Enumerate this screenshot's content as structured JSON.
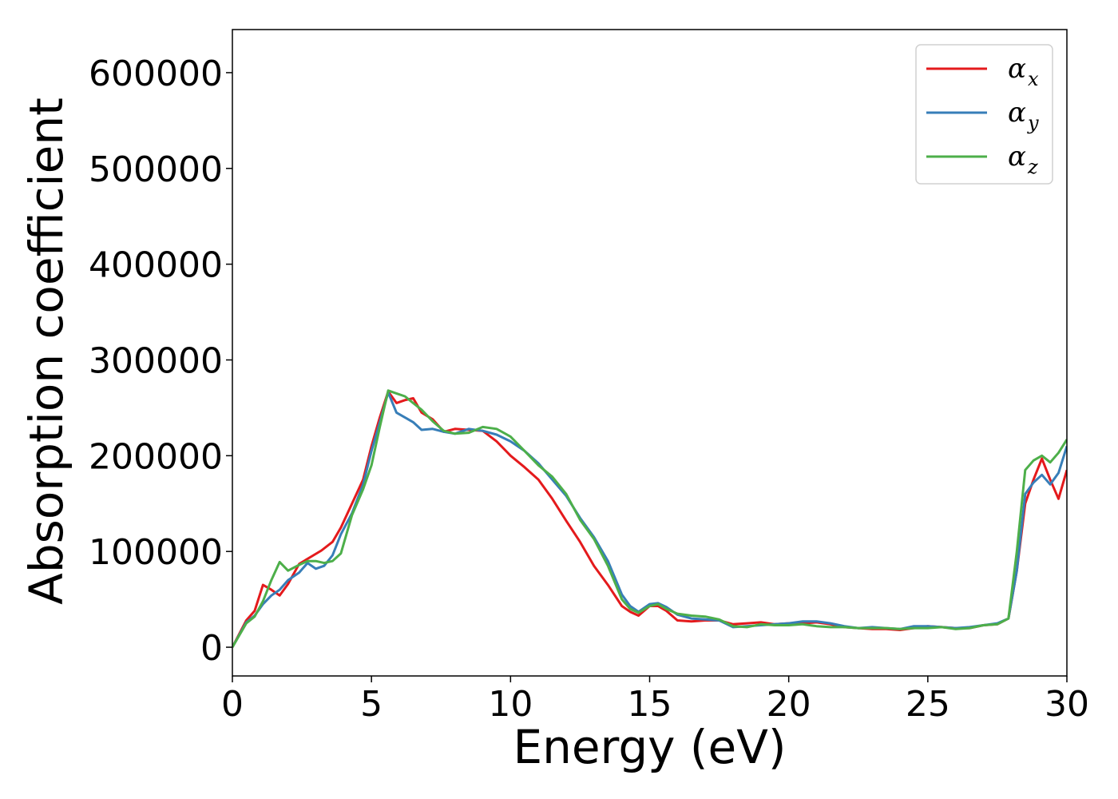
{
  "chart_data": {
    "type": "line",
    "title": "",
    "xlabel": "Energy (eV)",
    "ylabel": "Absorption coefficient",
    "xlim": [
      0,
      30
    ],
    "ylim": [
      -30000,
      645000
    ],
    "x_ticks": [
      0,
      5,
      10,
      15,
      20,
      25,
      30
    ],
    "x_tick_labels": [
      "0",
      "5",
      "10",
      "15",
      "20",
      "25",
      "30"
    ],
    "y_ticks": [
      0,
      100000,
      200000,
      300000,
      400000,
      500000,
      600000
    ],
    "y_tick_labels": [
      "0",
      "100000",
      "200000",
      "300000",
      "400000",
      "500000",
      "600000"
    ],
    "grid": false,
    "legend_position": "top-right",
    "series": [
      {
        "name": "α_x",
        "label_main": "α",
        "label_sub": "x",
        "color": "#e41a1c",
        "points": [
          [
            0,
            0
          ],
          [
            0.5,
            28000
          ],
          [
            0.8,
            38000
          ],
          [
            1.1,
            65000
          ],
          [
            1.4,
            60000
          ],
          [
            1.7,
            54000
          ],
          [
            2.0,
            66000
          ],
          [
            2.4,
            87000
          ],
          [
            2.8,
            94000
          ],
          [
            3.2,
            101000
          ],
          [
            3.6,
            110000
          ],
          [
            3.9,
            125000
          ],
          [
            4.3,
            150000
          ],
          [
            4.7,
            175000
          ],
          [
            5.0,
            210000
          ],
          [
            5.3,
            240000
          ],
          [
            5.6,
            267000
          ],
          [
            5.9,
            255000
          ],
          [
            6.2,
            258000
          ],
          [
            6.5,
            260000
          ],
          [
            6.8,
            245000
          ],
          [
            7.2,
            238000
          ],
          [
            7.6,
            225000
          ],
          [
            8.0,
            228000
          ],
          [
            8.5,
            227000
          ],
          [
            9.0,
            226000
          ],
          [
            9.5,
            215000
          ],
          [
            10.0,
            200000
          ],
          [
            10.5,
            188000
          ],
          [
            11.0,
            175000
          ],
          [
            11.5,
            155000
          ],
          [
            12.0,
            132000
          ],
          [
            12.5,
            110000
          ],
          [
            13.0,
            85000
          ],
          [
            13.5,
            65000
          ],
          [
            14.0,
            43000
          ],
          [
            14.3,
            37000
          ],
          [
            14.6,
            33000
          ],
          [
            15.0,
            43000
          ],
          [
            15.3,
            43000
          ],
          [
            15.6,
            38000
          ],
          [
            16.0,
            28000
          ],
          [
            16.5,
            27000
          ],
          [
            17.0,
            28000
          ],
          [
            17.5,
            28000
          ],
          [
            18.0,
            24000
          ],
          [
            18.5,
            25000
          ],
          [
            19.0,
            26000
          ],
          [
            19.5,
            24000
          ],
          [
            20.0,
            25000
          ],
          [
            20.5,
            25000
          ],
          [
            21.0,
            26000
          ],
          [
            21.5,
            24000
          ],
          [
            22.0,
            21000
          ],
          [
            22.5,
            20000
          ],
          [
            23.0,
            19000
          ],
          [
            23.5,
            19000
          ],
          [
            24.0,
            18000
          ],
          [
            24.5,
            20000
          ],
          [
            25.0,
            22000
          ],
          [
            25.5,
            21000
          ],
          [
            26.0,
            20000
          ],
          [
            26.5,
            20000
          ],
          [
            27.0,
            23000
          ],
          [
            27.5,
            24000
          ],
          [
            27.9,
            30000
          ],
          [
            28.2,
            80000
          ],
          [
            28.5,
            150000
          ],
          [
            28.8,
            175000
          ],
          [
            29.1,
            197000
          ],
          [
            29.4,
            175000
          ],
          [
            29.7,
            155000
          ],
          [
            30.0,
            185000
          ]
        ]
      },
      {
        "name": "α_y",
        "label_main": "α",
        "label_sub": "y",
        "color": "#377eb8",
        "points": [
          [
            0,
            0
          ],
          [
            0.5,
            26000
          ],
          [
            0.8,
            33000
          ],
          [
            1.1,
            45000
          ],
          [
            1.4,
            54000
          ],
          [
            1.7,
            60000
          ],
          [
            2.0,
            70000
          ],
          [
            2.4,
            78000
          ],
          [
            2.7,
            88000
          ],
          [
            3.0,
            82000
          ],
          [
            3.3,
            85000
          ],
          [
            3.6,
            96000
          ],
          [
            3.9,
            118000
          ],
          [
            4.3,
            140000
          ],
          [
            4.7,
            170000
          ],
          [
            5.0,
            205000
          ],
          [
            5.3,
            235000
          ],
          [
            5.6,
            266000
          ],
          [
            5.9,
            245000
          ],
          [
            6.2,
            240000
          ],
          [
            6.5,
            235000
          ],
          [
            6.8,
            227000
          ],
          [
            7.2,
            228000
          ],
          [
            7.6,
            225000
          ],
          [
            8.0,
            223000
          ],
          [
            8.5,
            228000
          ],
          [
            9.0,
            226000
          ],
          [
            9.5,
            222000
          ],
          [
            10.0,
            215000
          ],
          [
            10.5,
            205000
          ],
          [
            11.0,
            192000
          ],
          [
            11.5,
            175000
          ],
          [
            12.0,
            158000
          ],
          [
            12.5,
            135000
          ],
          [
            13.0,
            115000
          ],
          [
            13.5,
            90000
          ],
          [
            14.0,
            55000
          ],
          [
            14.3,
            43000
          ],
          [
            14.6,
            37000
          ],
          [
            15.0,
            45000
          ],
          [
            15.3,
            46000
          ],
          [
            15.6,
            42000
          ],
          [
            16.0,
            34000
          ],
          [
            16.5,
            30000
          ],
          [
            17.0,
            29000
          ],
          [
            17.5,
            28000
          ],
          [
            18.0,
            21000
          ],
          [
            18.5,
            22000
          ],
          [
            19.0,
            23000
          ],
          [
            19.5,
            24000
          ],
          [
            20.0,
            25000
          ],
          [
            20.5,
            27000
          ],
          [
            21.0,
            27000
          ],
          [
            21.5,
            25000
          ],
          [
            22.0,
            22000
          ],
          [
            22.5,
            20000
          ],
          [
            23.0,
            21000
          ],
          [
            23.5,
            20000
          ],
          [
            24.0,
            19000
          ],
          [
            24.5,
            22000
          ],
          [
            25.0,
            22000
          ],
          [
            25.5,
            21000
          ],
          [
            26.0,
            20000
          ],
          [
            26.5,
            21000
          ],
          [
            27.0,
            23000
          ],
          [
            27.5,
            25000
          ],
          [
            27.9,
            30000
          ],
          [
            28.2,
            80000
          ],
          [
            28.5,
            160000
          ],
          [
            28.8,
            172000
          ],
          [
            29.1,
            180000
          ],
          [
            29.4,
            170000
          ],
          [
            29.7,
            182000
          ],
          [
            30.0,
            210000
          ]
        ]
      },
      {
        "name": "α_z",
        "label_main": "α",
        "label_sub": "z",
        "color": "#4daf4a",
        "points": [
          [
            0,
            0
          ],
          [
            0.5,
            25000
          ],
          [
            0.8,
            32000
          ],
          [
            1.1,
            48000
          ],
          [
            1.4,
            70000
          ],
          [
            1.7,
            89000
          ],
          [
            2.0,
            80000
          ],
          [
            2.4,
            86000
          ],
          [
            2.7,
            90000
          ],
          [
            3.0,
            90000
          ],
          [
            3.3,
            88000
          ],
          [
            3.6,
            90000
          ],
          [
            3.9,
            98000
          ],
          [
            4.3,
            138000
          ],
          [
            4.7,
            165000
          ],
          [
            5.0,
            190000
          ],
          [
            5.3,
            230000
          ],
          [
            5.6,
            268000
          ],
          [
            5.9,
            265000
          ],
          [
            6.2,
            262000
          ],
          [
            6.5,
            255000
          ],
          [
            6.8,
            248000
          ],
          [
            7.2,
            236000
          ],
          [
            7.6,
            226000
          ],
          [
            8.0,
            223000
          ],
          [
            8.5,
            224000
          ],
          [
            9.0,
            230000
          ],
          [
            9.5,
            228000
          ],
          [
            10.0,
            220000
          ],
          [
            10.5,
            205000
          ],
          [
            11.0,
            190000
          ],
          [
            11.5,
            178000
          ],
          [
            12.0,
            160000
          ],
          [
            12.5,
            133000
          ],
          [
            13.0,
            113000
          ],
          [
            13.5,
            85000
          ],
          [
            14.0,
            50000
          ],
          [
            14.3,
            40000
          ],
          [
            14.6,
            36000
          ],
          [
            15.0,
            43000
          ],
          [
            15.3,
            45000
          ],
          [
            15.6,
            40000
          ],
          [
            16.0,
            35000
          ],
          [
            16.5,
            33000
          ],
          [
            17.0,
            32000
          ],
          [
            17.5,
            29000
          ],
          [
            18.0,
            22000
          ],
          [
            18.5,
            21000
          ],
          [
            19.0,
            24000
          ],
          [
            19.5,
            23000
          ],
          [
            20.0,
            23000
          ],
          [
            20.5,
            24000
          ],
          [
            21.0,
            22000
          ],
          [
            21.5,
            21000
          ],
          [
            22.0,
            21000
          ],
          [
            22.5,
            20000
          ],
          [
            23.0,
            20000
          ],
          [
            23.5,
            20000
          ],
          [
            24.0,
            19000
          ],
          [
            24.5,
            20000
          ],
          [
            25.0,
            20000
          ],
          [
            25.5,
            21000
          ],
          [
            26.0,
            19000
          ],
          [
            26.5,
            20000
          ],
          [
            27.0,
            23000
          ],
          [
            27.5,
            24000
          ],
          [
            27.9,
            30000
          ],
          [
            28.2,
            100000
          ],
          [
            28.5,
            185000
          ],
          [
            28.8,
            195000
          ],
          [
            29.1,
            200000
          ],
          [
            29.4,
            193000
          ],
          [
            29.7,
            203000
          ],
          [
            30.0,
            217000
          ]
        ]
      }
    ]
  }
}
